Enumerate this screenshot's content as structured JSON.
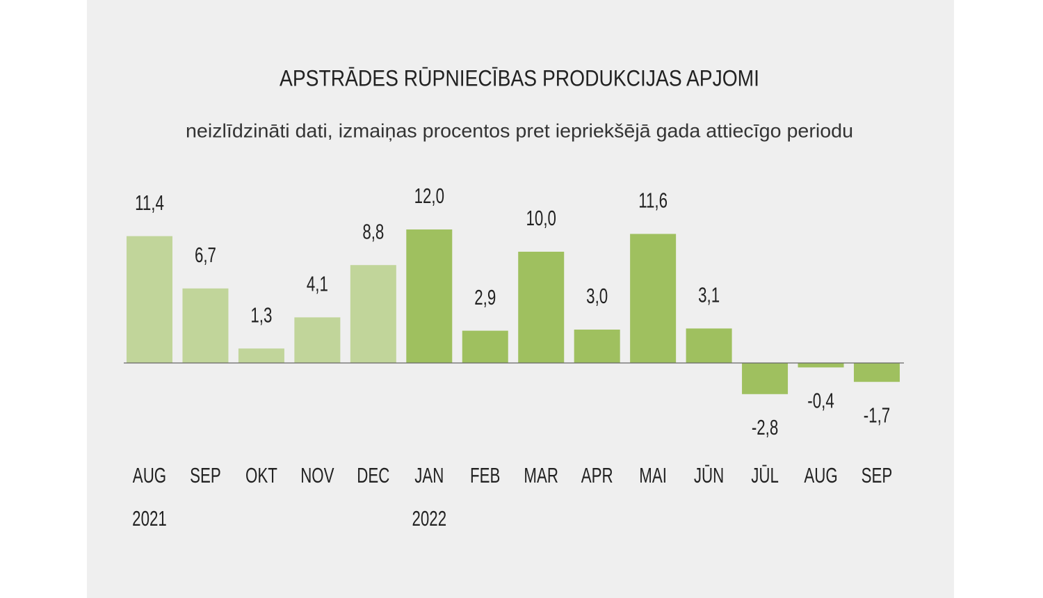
{
  "chart_data": {
    "type": "bar",
    "title": "APSTRĀDES RŪPNIECĪBAS PRODUKCIJAS APJOMI",
    "subtitle": "neizlīdzināti dati, izmaiņas procentos pret iepriekšējā gada attiecīgo periodu",
    "categories": [
      "AUG",
      "SEP",
      "OKT",
      "NOV",
      "DEC",
      "JAN",
      "FEB",
      "MAR",
      "APR",
      "MAI",
      "JŪN",
      "JŪL",
      "AUG",
      "SEP"
    ],
    "years": [
      "2021",
      null,
      null,
      null,
      null,
      "2022",
      null,
      null,
      null,
      null,
      null,
      null,
      null,
      null
    ],
    "values": [
      11.4,
      6.7,
      1.3,
      4.1,
      8.8,
      12.0,
      2.9,
      10.0,
      3.0,
      11.6,
      3.1,
      -2.8,
      -0.4,
      -1.7
    ],
    "value_labels": [
      "11,4",
      "6,7",
      "1,3",
      "4,1",
      "8,8",
      "12,0",
      "2,9",
      "10,0",
      "3,0",
      "11,6",
      "3,1",
      "-2,8",
      "-0,4",
      "-1,7"
    ],
    "colors": [
      "#c1d59a",
      "#c1d59a",
      "#c1d59a",
      "#c1d59a",
      "#c1d59a",
      "#9fc05f",
      "#9fc05f",
      "#9fc05f",
      "#9fc05f",
      "#9fc05f",
      "#9fc05f",
      "#9fc05f",
      "#9fc05f",
      "#9fc05f"
    ],
    "ylim": [
      -6,
      14
    ]
  }
}
